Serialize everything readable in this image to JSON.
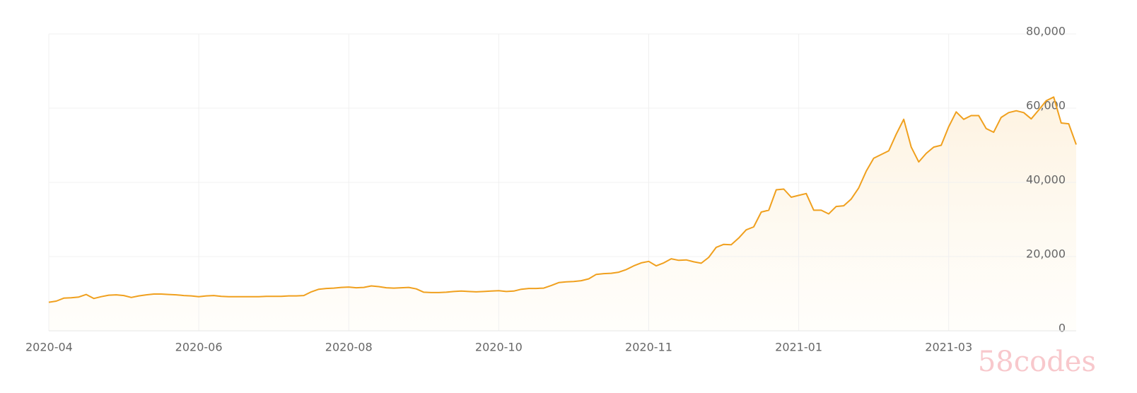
{
  "chart_data": {
    "type": "line",
    "xlim": [
      0,
      137
    ],
    "xticks": [
      {
        "value": 0,
        "label": "2020-04"
      },
      {
        "value": 20,
        "label": "2020-06"
      },
      {
        "value": 40,
        "label": "2020-08"
      },
      {
        "value": 60,
        "label": "2020-10"
      },
      {
        "value": 80,
        "label": "2020-11"
      },
      {
        "value": 100,
        "label": "2021-01"
      },
      {
        "value": 120,
        "label": "2021-03"
      }
    ],
    "ylim": [
      0,
      80000
    ],
    "yticks": [
      0,
      {
        "value": 20000,
        "label": "20,000"
      },
      {
        "value": 40000,
        "label": "40,000"
      },
      {
        "value": 60000,
        "label": "60,000"
      },
      {
        "value": 80000,
        "label": "80,000"
      }
    ],
    "grid": true,
    "color": "#f0a01e",
    "values": [
      7700,
      8000,
      8800,
      8900,
      9100,
      9800,
      8700,
      9200,
      9600,
      9700,
      9500,
      9000,
      9400,
      9700,
      9900,
      9900,
      9800,
      9700,
      9500,
      9400,
      9200,
      9400,
      9500,
      9300,
      9200,
      9200,
      9200,
      9200,
      9200,
      9300,
      9300,
      9300,
      9400,
      9400,
      9500,
      10500,
      11200,
      11400,
      11500,
      11700,
      11800,
      11600,
      11700,
      12100,
      11900,
      11600,
      11500,
      11600,
      11700,
      11300,
      10400,
      10300,
      10300,
      10400,
      10600,
      10700,
      10600,
      10500,
      10600,
      10700,
      10800,
      10600,
      10700,
      11200,
      11400,
      11400,
      11500,
      12200,
      13000,
      13200,
      13300,
      13500,
      14000,
      15200,
      15400,
      15500,
      15800,
      16500,
      17500,
      18300,
      18700,
      17500,
      18300,
      19400,
      19000,
      19100,
      18600,
      18200,
      19800,
      22500,
      23300,
      23200,
      25000,
      27200,
      28000,
      32000,
      32500,
      38000,
      38200,
      36000,
      36500,
      37000,
      32500,
      32500,
      31500,
      33500,
      33700,
      35500,
      38500,
      43000,
      46500,
      47500,
      48500,
      53000,
      57000,
      49500,
      45500,
      47800,
      49500,
      50000,
      55000,
      59000,
      57000,
      58000,
      58000,
      54500,
      53500,
      57500,
      58800,
      59300,
      58800,
      57100,
      59500,
      62000,
      63000,
      56000,
      55800,
      50200
    ],
    "watermark": "58codes"
  }
}
